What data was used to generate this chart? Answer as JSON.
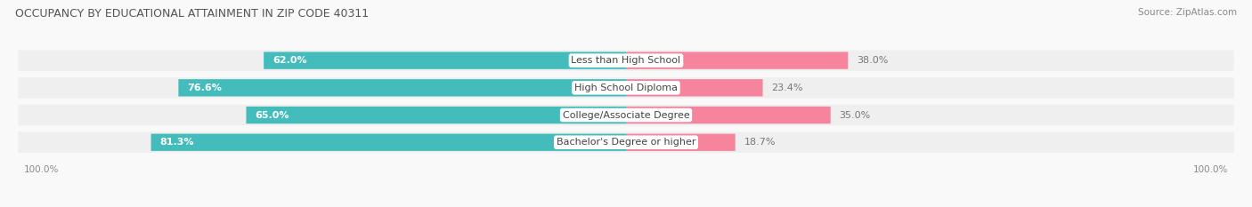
{
  "title": "OCCUPANCY BY EDUCATIONAL ATTAINMENT IN ZIP CODE 40311",
  "source": "Source: ZipAtlas.com",
  "categories": [
    "Less than High School",
    "High School Diploma",
    "College/Associate Degree",
    "Bachelor's Degree or higher"
  ],
  "owner_values": [
    62.0,
    76.6,
    65.0,
    81.3
  ],
  "renter_values": [
    38.0,
    23.4,
    35.0,
    18.7
  ],
  "owner_color": "#45BCBC",
  "renter_color": "#F5849C",
  "row_bg_color": "#EFEFEF",
  "fig_bg_color": "#F9F9F9",
  "title_fontsize": 9,
  "label_fontsize": 8,
  "value_fontsize": 8,
  "legend_fontsize": 8,
  "source_fontsize": 7.5,
  "axis_label_fontsize": 7.5,
  "figsize": [
    14.06,
    2.33
  ],
  "dpi": 100
}
